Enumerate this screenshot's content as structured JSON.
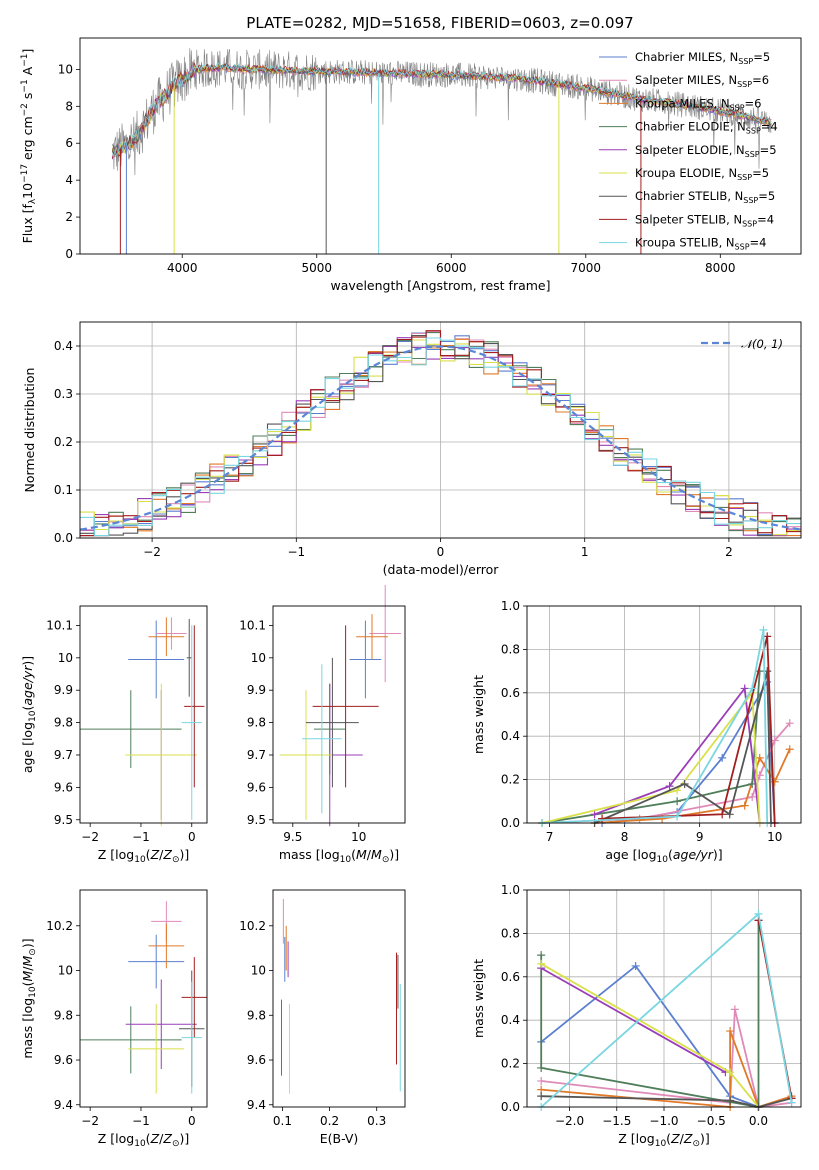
{
  "title": "PLATE=0282, MJD=51658, FIBERID=0603, z=0.097",
  "colors": {
    "cb_miles": "#5b7fcf",
    "sp_miles": "#e08ab8",
    "kp_miles": "#e07a2a",
    "cb_elodie": "#4f7e5a",
    "sp_elodie": "#9a3fb8",
    "kp_elodie": "#d8e04a",
    "cb_stelib": "#555555",
    "sp_stelib": "#a31f1f",
    "kp_stelib": "#7ad6e0",
    "gauss": "#5b86d6"
  },
  "legend_spectrum": [
    {
      "model": "Chabrier MILES, N",
      "sub": "SSP",
      "tail": "=5",
      "color_key": "cb_miles"
    },
    {
      "model": "Salpeter MILES, N",
      "sub": "SSP",
      "tail": "=6",
      "color_key": "sp_miles"
    },
    {
      "model": "Kroupa MILES, N",
      "sub": "SSP",
      "tail": "=6",
      "color_key": "kp_miles"
    },
    {
      "model": "Chabrier ELODIE, N",
      "sub": "SSP",
      "tail": "=4",
      "color_key": "cb_elodie"
    },
    {
      "model": "Salpeter ELODIE, N",
      "sub": "SSP",
      "tail": "=5",
      "color_key": "sp_elodie"
    },
    {
      "model": "Kroupa ELODIE, N",
      "sub": "SSP",
      "tail": "=5",
      "color_key": "kp_elodie"
    },
    {
      "model": "Chabrier STELIB, N",
      "sub": "SSP",
      "tail": "=5",
      "color_key": "cb_stelib"
    },
    {
      "model": "Salpeter STELIB, N",
      "sub": "SSP",
      "tail": "=4",
      "color_key": "sp_stelib"
    },
    {
      "model": "Kroupa STELIB, N",
      "sub": "SSP",
      "tail": "=4",
      "color_key": "kp_stelib"
    }
  ],
  "chart_data": [
    {
      "id": "spectrum",
      "type": "line",
      "title": "PLATE=0282, MJD=51658, FIBERID=0603, z=0.097",
      "xlabel": "wavelength [Angstrom, rest frame]",
      "ylabel": "Flux [f_lambda 10^-17 erg cm^-2 s^-1 A^-1]",
      "xlim": [
        3240,
        8600
      ],
      "ylim": [
        0,
        11.7
      ],
      "xticks": [
        4000,
        5000,
        6000,
        7000,
        8000
      ],
      "yticks": [
        0,
        2,
        4,
        6,
        8,
        10
      ],
      "continuum": {
        "x": [
          3500,
          3650,
          3800,
          3950,
          4100,
          4300,
          4500,
          5000,
          5500,
          6000,
          6500,
          7000,
          7400,
          7800,
          8100,
          8380
        ],
        "y": [
          5.5,
          6.2,
          8.0,
          9.2,
          10.0,
          10.1,
          10.0,
          9.9,
          9.8,
          9.7,
          9.5,
          9.0,
          8.4,
          8.0,
          7.6,
          7.1
        ]
      },
      "dips_data_units": [
        3540,
        3585,
        3940,
        5070,
        5460,
        6800,
        7410
      ],
      "legend_loc": "right"
    },
    {
      "id": "residuals",
      "type": "histogram",
      "xlabel": "(data-model)/error",
      "ylabel": "Normed distribution",
      "xlim": [
        -2.5,
        2.5
      ],
      "ylim": [
        0,
        0.45
      ],
      "xticks": [
        -2,
        -1,
        0,
        1,
        2
      ],
      "yticks": [
        0.0,
        0.1,
        0.2,
        0.3,
        0.4
      ],
      "bin_width": 0.1,
      "series_keys": [
        "cb_miles",
        "sp_miles",
        "kp_miles",
        "cb_elodie",
        "sp_elodie",
        "kp_elodie",
        "cb_stelib",
        "sp_stelib",
        "kp_stelib"
      ],
      "gaussian_label": "𝒩(0, 1)",
      "grid": true
    },
    {
      "id": "z_age",
      "type": "errorbar",
      "xlabel": "Z [log10(Z/Zsun)]",
      "ylabel": "age [log10(age/yr)]",
      "xlim": [
        -2.2,
        0.3
      ],
      "ylim": [
        9.49,
        10.16
      ],
      "xticks": [
        -2,
        -1,
        0
      ],
      "yticks": [
        9.5,
        9.6,
        9.7,
        9.8,
        9.9,
        10.0,
        10.1
      ],
      "points": [
        {
          "k": "cb_miles",
          "x": -0.7,
          "xe": 0.55,
          "y": 9.995,
          "ye": 0.12
        },
        {
          "k": "sp_miles",
          "x": -0.4,
          "xe": 0.3,
          "y": 10.075,
          "ye": 0.05
        },
        {
          "k": "kp_miles",
          "x": -0.5,
          "xe": 0.35,
          "y": 10.065,
          "ye": 0.06
        },
        {
          "k": "cb_elodie",
          "x": -1.2,
          "xe": 1.0,
          "y": 9.78,
          "ye": 0.12
        },
        {
          "k": "sp_elodie",
          "x": -0.6,
          "xe": 0.7,
          "y": 9.7,
          "ye": 0.2
        },
        {
          "k": "kp_elodie",
          "x": -0.6,
          "xe": 0.7,
          "y": 9.7,
          "ye": 0.22
        },
        {
          "k": "cb_stelib",
          "x": -0.05,
          "xe": 0.05,
          "y": 10.0,
          "ye": 0.12
        },
        {
          "k": "sp_stelib",
          "x": 0.05,
          "xe": 0.2,
          "y": 9.85,
          "ye": 0.25
        },
        {
          "k": "kp_stelib",
          "x": 0.0,
          "xe": 0.2,
          "y": 9.8,
          "ye": 0.3
        }
      ]
    },
    {
      "id": "mass_age",
      "type": "errorbar",
      "xlabel": "mass [log10(M/Msun)]",
      "ylabel": "",
      "xlim": [
        9.35,
        10.35
      ],
      "ylim": [
        9.49,
        10.16
      ],
      "xticks": [
        9.5,
        10.0
      ],
      "yticks": [
        9.5,
        9.6,
        9.7,
        9.8,
        9.9,
        10.0,
        10.1
      ],
      "points": [
        {
          "k": "cb_miles",
          "x": 10.05,
          "xe": 0.12,
          "y": 9.995,
          "ye": 0.12
        },
        {
          "k": "sp_miles",
          "x": 10.2,
          "xe": 0.12,
          "y": 10.075,
          "ye": 0.15
        },
        {
          "k": "kp_miles",
          "x": 10.1,
          "xe": 0.12,
          "y": 10.065,
          "ye": 0.07
        },
        {
          "k": "cb_elodie",
          "x": 9.78,
          "xe": 0.12,
          "y": 9.78,
          "ye": 0.14
        },
        {
          "k": "sp_elodie",
          "x": 9.78,
          "xe": 0.25,
          "y": 9.7,
          "ye": 0.22
        },
        {
          "k": "kp_elodie",
          "x": 9.6,
          "xe": 0.2,
          "y": 9.7,
          "ye": 0.2
        },
        {
          "k": "cb_stelib",
          "x": 9.8,
          "xe": 0.2,
          "y": 9.8,
          "ye": 0.2
        },
        {
          "k": "sp_stelib",
          "x": 9.9,
          "xe": 0.25,
          "y": 9.85,
          "ye": 0.25
        },
        {
          "k": "kp_stelib",
          "x": 9.72,
          "xe": 0.15,
          "y": 9.75,
          "ye": 0.23
        }
      ]
    },
    {
      "id": "age_massweight",
      "type": "line",
      "xlabel": "age [log10(age/yr)]",
      "ylabel": "mass weight",
      "xlim": [
        6.7,
        10.35
      ],
      "ylim": [
        0,
        1.0
      ],
      "xticks": [
        7,
        8,
        9,
        10
      ],
      "yticks": [
        0.0,
        0.2,
        0.4,
        0.6,
        0.8,
        1.0
      ],
      "grid": true,
      "series": [
        {
          "k": "cb_miles",
          "x": [
            7.7,
            8.0,
            8.7,
            9.3,
            9.9,
            10.0
          ],
          "y": [
            0.0,
            0.01,
            0.05,
            0.3,
            0.65,
            0.0
          ]
        },
        {
          "k": "sp_miles",
          "x": [
            6.9,
            8.2,
            9.7,
            9.8,
            10.0,
            10.2
          ],
          "y": [
            0.0,
            0.02,
            0.12,
            0.22,
            0.38,
            0.46
          ]
        },
        {
          "k": "kp_miles",
          "x": [
            7.6,
            8.5,
            9.6,
            9.8,
            10.0,
            10.2
          ],
          "y": [
            0.0,
            0.02,
            0.08,
            0.3,
            0.19,
            0.34
          ]
        },
        {
          "k": "cb_elodie",
          "x": [
            6.9,
            8.7,
            9.7,
            9.8
          ],
          "y": [
            0.0,
            0.1,
            0.18,
            0.7
          ]
        },
        {
          "k": "sp_elodie",
          "x": [
            7.6,
            8.6,
            9.6,
            9.8
          ],
          "y": [
            0.04,
            0.17,
            0.62,
            0.0
          ]
        },
        {
          "k": "kp_elodie",
          "x": [
            6.9,
            8.7,
            9.7,
            9.8
          ],
          "y": [
            0.0,
            0.15,
            0.6,
            0.0
          ]
        },
        {
          "k": "cb_stelib",
          "x": [
            7.6,
            8.8,
            9.4,
            9.9,
            9.95
          ],
          "y": [
            0.0,
            0.18,
            0.04,
            0.7,
            0.0
          ]
        },
        {
          "k": "sp_stelib",
          "x": [
            7.7,
            9.3,
            9.9,
            10.0
          ],
          "y": [
            0.02,
            0.04,
            0.86,
            0.0
          ]
        },
        {
          "k": "kp_stelib",
          "x": [
            6.9,
            8.7,
            9.7,
            9.85,
            9.9
          ],
          "y": [
            0.0,
            0.03,
            0.62,
            0.89,
            0.0
          ]
        }
      ]
    },
    {
      "id": "z_mass",
      "type": "errorbar",
      "xlabel": "Z [log10(Z/Zsun)]",
      "ylabel": "mass [log10(M/Msun)]",
      "xlim": [
        -2.2,
        0.3
      ],
      "ylim": [
        9.39,
        10.36
      ],
      "xticks": [
        -2,
        -1,
        0
      ],
      "yticks": [
        9.4,
        9.6,
        9.8,
        10.0,
        10.2
      ],
      "points": [
        {
          "k": "cb_miles",
          "x": -0.7,
          "xe": 0.55,
          "y": 10.04,
          "ye": 0.12
        },
        {
          "k": "sp_miles",
          "x": -0.5,
          "xe": 0.3,
          "y": 10.22,
          "ye": 0.09
        },
        {
          "k": "kp_miles",
          "x": -0.5,
          "xe": 0.35,
          "y": 10.11,
          "ye": 0.1
        },
        {
          "k": "cb_elodie",
          "x": -1.2,
          "xe": 1.0,
          "y": 9.69,
          "ye": 0.15
        },
        {
          "k": "sp_elodie",
          "x": -0.6,
          "xe": 0.7,
          "y": 9.76,
          "ye": 0.2
        },
        {
          "k": "kp_elodie",
          "x": -0.7,
          "xe": 0.55,
          "y": 9.65,
          "ye": 0.2
        },
        {
          "k": "cb_stelib",
          "x": 0.0,
          "xe": 0.25,
          "y": 9.74,
          "ye": 0.26
        },
        {
          "k": "sp_stelib",
          "x": 0.05,
          "xe": 0.25,
          "y": 9.88,
          "ye": 0.18
        },
        {
          "k": "kp_stelib",
          "x": 0.0,
          "xe": 0.2,
          "y": 9.7,
          "ye": 0.25
        }
      ]
    },
    {
      "id": "ebv_mass",
      "type": "errorbar",
      "xlabel": "E(B-V)",
      "ylabel": "",
      "xlim": [
        0.08,
        0.36
      ],
      "ylim": [
        9.39,
        10.36
      ],
      "xticks": [
        0.1,
        0.2,
        0.3
      ],
      "yticks": [
        9.4,
        9.6,
        9.8,
        10.0,
        10.2
      ],
      "points": [
        {
          "k": "cb_miles",
          "x": 0.105,
          "xe": 0.0,
          "y": 10.05,
          "ye": 0.1
        },
        {
          "k": "sp_miles",
          "x": 0.102,
          "xe": 0.0,
          "y": 10.22,
          "ye": 0.1
        },
        {
          "k": "kp_miles",
          "x": 0.108,
          "xe": 0.0,
          "y": 10.1,
          "ye": 0.1
        },
        {
          "k": "cb_elodie",
          "x": 0.098,
          "xe": 0.0,
          "y": 9.7,
          "ye": 0.17
        },
        {
          "k": "sp_elodie",
          "x": 0.112,
          "xe": 0.0,
          "y": 10.05,
          "ye": 0.08
        },
        {
          "k": "kp_elodie",
          "x": 0.115,
          "xe": 0.0,
          "y": 9.65,
          "ye": 0.2
        },
        {
          "k": "cb_stelib",
          "x": 0.345,
          "xe": 0.0,
          "y": 9.95,
          "ye": 0.12
        },
        {
          "k": "sp_stelib",
          "x": 0.342,
          "xe": 0.0,
          "y": 9.83,
          "ye": 0.25
        },
        {
          "k": "kp_stelib",
          "x": 0.35,
          "xe": 0.0,
          "y": 9.7,
          "ye": 0.24
        }
      ]
    },
    {
      "id": "z_massweight",
      "type": "line",
      "xlabel": "Z [log10(Z/Zsun)]",
      "ylabel": "mass weight",
      "xlim": [
        -2.45,
        0.45
      ],
      "ylim": [
        0,
        1.0
      ],
      "xticks": [
        -2.0,
        -1.5,
        -1.0,
        -0.5,
        0.0
      ],
      "tick_labels": [
        "−2.0",
        "−1.5",
        "−1.0",
        "−0.5",
        "0.0"
      ],
      "yticks": [
        0.0,
        0.2,
        0.4,
        0.6,
        0.8,
        1.0
      ],
      "grid": true,
      "series": [
        {
          "k": "cb_miles",
          "x": [
            -2.3,
            -1.3,
            -0.3,
            0.0
          ],
          "y": [
            0.3,
            0.65,
            0.05,
            0.0
          ]
        },
        {
          "k": "sp_miles",
          "x": [
            -2.3,
            -0.3,
            -0.25,
            0.0,
            0.35
          ],
          "y": [
            0.12,
            0.02,
            0.45,
            0.0,
            0.02
          ]
        },
        {
          "k": "kp_miles",
          "x": [
            -2.3,
            -0.3,
            -0.3,
            0.0,
            0.35
          ],
          "y": [
            0.08,
            0.0,
            0.35,
            0.0,
            0.05
          ]
        },
        {
          "k": "cb_elodie",
          "x": [
            -2.3,
            -2.3,
            0.0,
            0.0
          ],
          "y": [
            0.7,
            0.18,
            0.0,
            0.86
          ]
        },
        {
          "k": "sp_elodie",
          "x": [
            -2.3,
            -0.35
          ],
          "y": [
            0.64,
            0.16
          ]
        },
        {
          "k": "kp_elodie",
          "x": [
            -2.3,
            -0.3,
            0.0
          ],
          "y": [
            0.66,
            0.16,
            0.0
          ]
        },
        {
          "k": "cb_stelib",
          "x": [
            -2.3,
            -0.3,
            0.0,
            0.35
          ],
          "y": [
            0.05,
            0.03,
            0.0,
            0.04
          ]
        },
        {
          "k": "sp_stelib",
          "x": [
            0.0,
            0.35
          ],
          "y": [
            0.86,
            0.04
          ]
        },
        {
          "k": "kp_stelib",
          "x": [
            -2.3,
            0.0,
            0.35
          ],
          "y": [
            0.0,
            0.89,
            0.02
          ]
        }
      ]
    }
  ]
}
